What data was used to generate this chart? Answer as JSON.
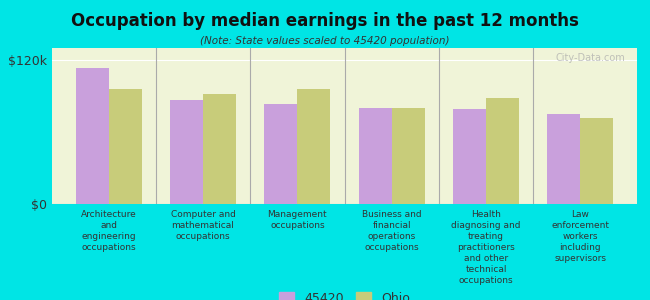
{
  "title": "Occupation by median earnings in the past 12 months",
  "subtitle": "(Note: State values scaled to 45420 population)",
  "background_color": "#00e5e5",
  "plot_bg_color": "#f0f4d8",
  "categories": [
    "Architecture\nand\nengineering\noccupations",
    "Computer and\nmathematical\noccupations",
    "Management\noccupations",
    "Business and\nfinancial\noperations\noccupations",
    "Health\ndiagnosing and\ntreating\npractitioners\nand other\ntechnical\noccupations",
    "Law\nenforcement\nworkers\nincluding\nsupervisors"
  ],
  "values_45420": [
    113000,
    87000,
    83000,
    80000,
    79000,
    75000
  ],
  "values_ohio": [
    96000,
    92000,
    96000,
    80000,
    88000,
    72000
  ],
  "color_45420": "#c9a0dc",
  "color_ohio": "#c8cc7a",
  "ylim": [
    0,
    130000
  ],
  "yticks": [
    0,
    120000
  ],
  "ytick_labels": [
    "$0",
    "$120k"
  ],
  "legend_label_45420": "45420",
  "legend_label_ohio": "Ohio",
  "bar_width": 0.35,
  "watermark": "City-Data.com"
}
